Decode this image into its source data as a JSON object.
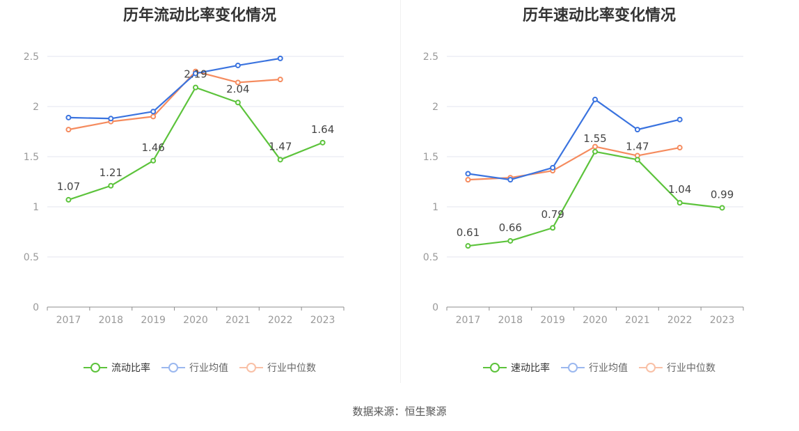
{
  "charts": [
    {
      "title": "历年流动比率变化情况",
      "legend": [
        "流动比率",
        "行业均值",
        "行业中位数"
      ]
    },
    {
      "title": "历年速动比率变化情况",
      "legend": [
        "速动比率",
        "行业均值",
        "行业中位数"
      ]
    }
  ],
  "source": "数据来源：恒生聚源",
  "chart_data": [
    {
      "type": "line",
      "title": "历年流动比率变化情况",
      "categories": [
        "2017",
        "2018",
        "2019",
        "2020",
        "2021",
        "2022",
        "2023"
      ],
      "ylim": [
        0,
        2.5
      ],
      "yticks": [
        "0",
        "0.5",
        "1",
        "1.5",
        "2",
        "2.5"
      ],
      "grid": true,
      "legend_position": "bottom",
      "series": [
        {
          "name": "流动比率",
          "color": "#5cc33b",
          "labels": true,
          "values": [
            1.07,
            1.21,
            1.46,
            2.19,
            2.04,
            1.47,
            1.64
          ]
        },
        {
          "name": "行业均值",
          "color": "#3a73df",
          "labels": false,
          "values": [
            1.89,
            1.88,
            1.95,
            2.33,
            2.41,
            2.48,
            null
          ]
        },
        {
          "name": "行业中位数",
          "color": "#f58b5e",
          "labels": false,
          "values": [
            1.77,
            1.85,
            1.9,
            2.35,
            2.24,
            2.27,
            null
          ]
        }
      ]
    },
    {
      "type": "line",
      "title": "历年速动比率变化情况",
      "categories": [
        "2017",
        "2018",
        "2019",
        "2020",
        "2021",
        "2022",
        "2023"
      ],
      "ylim": [
        0,
        2.5
      ],
      "yticks": [
        "0",
        "0.5",
        "1",
        "1.5",
        "2",
        "2.5"
      ],
      "grid": true,
      "legend_position": "bottom",
      "series": [
        {
          "name": "速动比率",
          "color": "#5cc33b",
          "labels": true,
          "values": [
            0.61,
            0.66,
            0.79,
            1.55,
            1.47,
            1.04,
            0.99
          ]
        },
        {
          "name": "行业均值",
          "color": "#3a73df",
          "labels": false,
          "values": [
            1.33,
            1.27,
            1.39,
            2.07,
            1.77,
            1.87,
            null
          ]
        },
        {
          "name": "行业中位数",
          "color": "#f58b5e",
          "labels": false,
          "values": [
            1.27,
            1.29,
            1.36,
            1.6,
            1.51,
            1.59,
            null
          ]
        }
      ]
    }
  ]
}
